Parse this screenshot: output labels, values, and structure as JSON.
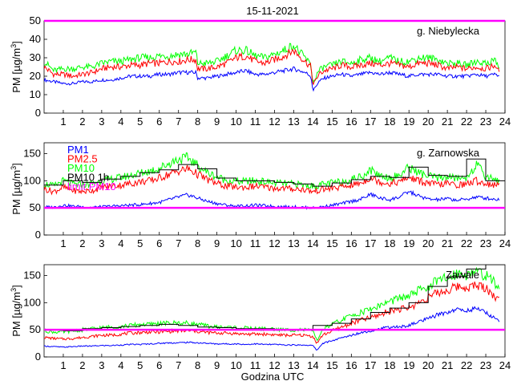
{
  "figure": {
    "title": "15-11-2021",
    "xlabel": "Godzina UTC"
  },
  "legend": {
    "items": [
      {
        "label": "PM1",
        "color": "#0000ff"
      },
      {
        "label": "PM2.5",
        "color": "#ff0000"
      },
      {
        "label": "PM10",
        "color": "#00ff00"
      },
      {
        "label": "PM10 1h",
        "color": "#000000"
      },
      {
        "label": "limit PM10",
        "color": "#ff00ff"
      }
    ]
  },
  "colors": {
    "pm1": "#0000ff",
    "pm25": "#ff0000",
    "pm10": "#00ff00",
    "pm10_1h": "#000000",
    "limit": "#ff00ff"
  },
  "chart_data": [
    {
      "type": "line",
      "station": "g. Niebylecka",
      "ylabel": "PM [µg/m³]",
      "ylabel_parts": {
        "prefix": "PM [µg/m",
        "sup": "3",
        "suffix": "]"
      },
      "xlim": [
        0,
        24
      ],
      "ylim": [
        0,
        50
      ],
      "yticks": [
        0,
        10,
        20,
        30,
        40,
        50
      ],
      "xticks": [
        1,
        2,
        3,
        4,
        5,
        6,
        7,
        8,
        9,
        10,
        11,
        12,
        13,
        14,
        15,
        16,
        17,
        18,
        19,
        20,
        21,
        22,
        23,
        24
      ],
      "limit": 50,
      "x": [
        0.0,
        0.5,
        1.0,
        1.5,
        2.0,
        2.5,
        3.0,
        3.5,
        4.0,
        4.5,
        5.0,
        5.5,
        6.0,
        6.5,
        7.0,
        7.5,
        7.9,
        8.0,
        8.5,
        9.0,
        9.5,
        10.0,
        10.5,
        11.0,
        11.5,
        12.0,
        12.5,
        13.0,
        13.3,
        13.6,
        13.9,
        14.0,
        14.3,
        14.6,
        15.0,
        15.5,
        16.0,
        16.5,
        17.0,
        17.5,
        18.0,
        18.5,
        19.0,
        19.5,
        20.0,
        20.5,
        21.0,
        21.5,
        22.0,
        22.5,
        23.0,
        23.5,
        23.7
      ],
      "series": [
        {
          "name": "PM1",
          "values": [
            18,
            17,
            16,
            16,
            17,
            17,
            18,
            18,
            19,
            20,
            20,
            20,
            21,
            21,
            22,
            22,
            22,
            19,
            19,
            20,
            21,
            22,
            23,
            21,
            21,
            22,
            23,
            24,
            23,
            22,
            20,
            12,
            17,
            19,
            20,
            21,
            20,
            21,
            22,
            21,
            22,
            21,
            20,
            21,
            21,
            21,
            20,
            20,
            20,
            21,
            20,
            21,
            20
          ]
        },
        {
          "name": "PM2.5",
          "values": [
            25,
            21,
            21,
            20,
            21,
            22,
            24,
            25,
            25,
            26,
            26,
            27,
            27,
            28,
            28,
            29,
            29,
            24,
            24,
            25,
            27,
            30,
            31,
            28,
            27,
            29,
            31,
            34,
            31,
            28,
            25,
            15,
            21,
            23,
            24,
            26,
            25,
            26,
            27,
            26,
            27,
            26,
            25,
            27,
            27,
            26,
            24,
            25,
            24,
            25,
            24,
            26,
            22
          ]
        },
        {
          "name": "PM10",
          "values": [
            28,
            23,
            24,
            24,
            25,
            25,
            27,
            28,
            28,
            29,
            30,
            30,
            31,
            31,
            32,
            32,
            33,
            27,
            27,
            28,
            31,
            34,
            34,
            31,
            30,
            32,
            34,
            37,
            33,
            30,
            26,
            16,
            23,
            25,
            26,
            28,
            27,
            29,
            30,
            28,
            30,
            28,
            28,
            30,
            30,
            29,
            27,
            27,
            26,
            28,
            27,
            29,
            24
          ]
        }
      ],
      "step_1h": null
    },
    {
      "type": "line",
      "station": "g. Zarnowska",
      "ylabel": "PM [µg/m³]",
      "ylabel_parts": {
        "prefix": "PM [µg/m",
        "sup": "3",
        "suffix": "]"
      },
      "xlim": [
        0,
        24
      ],
      "ylim": [
        0,
        170
      ],
      "yticks": [
        0,
        50,
        100,
        150
      ],
      "xticks": [
        1,
        2,
        3,
        4,
        5,
        6,
        7,
        8,
        9,
        10,
        11,
        12,
        13,
        14,
        15,
        16,
        17,
        18,
        19,
        20,
        21,
        22,
        23,
        24
      ],
      "limit": 50,
      "x": [
        0.0,
        0.5,
        1.0,
        1.5,
        2.0,
        2.5,
        3.0,
        3.5,
        4.0,
        4.5,
        5.0,
        5.5,
        6.0,
        6.5,
        7.0,
        7.5,
        8.0,
        8.5,
        9.0,
        9.5,
        10.0,
        10.5,
        11.0,
        11.5,
        12.0,
        12.5,
        13.0,
        13.5,
        14.0,
        14.5,
        15.0,
        15.5,
        16.0,
        16.5,
        17.0,
        17.5,
        18.0,
        18.5,
        19.0,
        19.5,
        20.0,
        20.5,
        21.0,
        21.5,
        22.0,
        22.5,
        23.0,
        23.5,
        23.7
      ],
      "series": [
        {
          "name": "PM1",
          "values": [
            52,
            51,
            55,
            53,
            52,
            51,
            52,
            53,
            54,
            55,
            56,
            58,
            60,
            65,
            70,
            74,
            68,
            62,
            58,
            55,
            53,
            54,
            55,
            54,
            53,
            52,
            52,
            51,
            50,
            52,
            55,
            58,
            62,
            66,
            75,
            68,
            65,
            70,
            80,
            72,
            66,
            65,
            67,
            64,
            66,
            70,
            68,
            66,
            65
          ]
        },
        {
          "name": "PM2.5",
          "values": [
            85,
            80,
            88,
            82,
            80,
            82,
            88,
            90,
            92,
            95,
            98,
            100,
            105,
            112,
            118,
            122,
            112,
            102,
            95,
            90,
            88,
            88,
            90,
            88,
            86,
            86,
            85,
            84,
            80,
            84,
            86,
            88,
            92,
            96,
            106,
            98,
            95,
            98,
            106,
            100,
            95,
            93,
            95,
            92,
            94,
            100,
            95,
            92,
            90
          ]
        },
        {
          "name": "PM10",
          "values": [
            95,
            90,
            100,
            94,
            92,
            95,
            100,
            103,
            106,
            110,
            114,
            118,
            123,
            132,
            140,
            142,
            128,
            115,
            107,
            101,
            98,
            99,
            100,
            98,
            96,
            95,
            94,
            92,
            90,
            93,
            96,
            98,
            103,
            108,
            120,
            110,
            106,
            110,
            125,
            115,
            108,
            105,
            108,
            104,
            106,
            130,
            108,
            104,
            100
          ]
        }
      ],
      "step_1h": {
        "hours": [
          0,
          1,
          2,
          3,
          4,
          5,
          6,
          7,
          8,
          9,
          10,
          11,
          12,
          13,
          14,
          15,
          16,
          17,
          18,
          19,
          20,
          21,
          22,
          23
        ],
        "values": [
          92,
          100,
          97,
          103,
          108,
          115,
          120,
          130,
          122,
          105,
          100,
          100,
          97,
          94,
          90,
          96,
          102,
          108,
          106,
          125,
          110,
          108,
          140,
          100
        ]
      }
    },
    {
      "type": "line",
      "station": "Zawale",
      "ylabel": "PM [µg/m³]",
      "ylabel_parts": {
        "prefix": "PM [µg/m",
        "sup": "3",
        "suffix": "]"
      },
      "xlim": [
        0,
        24
      ],
      "ylim": [
        0,
        170
      ],
      "yticks": [
        0,
        50,
        100,
        150
      ],
      "xticks": [
        1,
        2,
        3,
        4,
        5,
        6,
        7,
        8,
        9,
        10,
        11,
        12,
        13,
        14,
        15,
        16,
        17,
        18,
        19,
        20,
        21,
        22,
        23,
        24
      ],
      "limit": 50,
      "x": [
        0.0,
        0.5,
        1.0,
        1.5,
        2.0,
        2.5,
        3.0,
        3.5,
        4.0,
        4.5,
        5.0,
        5.5,
        6.0,
        6.5,
        7.0,
        7.5,
        8.0,
        8.5,
        9.0,
        9.5,
        10.0,
        10.5,
        11.0,
        11.5,
        12.0,
        12.5,
        13.0,
        13.5,
        14.0,
        14.2,
        14.5,
        15.0,
        15.5,
        16.0,
        16.5,
        17.0,
        17.5,
        18.0,
        18.5,
        19.0,
        19.5,
        20.0,
        20.5,
        21.0,
        21.5,
        22.0,
        22.5,
        23.0,
        23.5,
        23.7
      ],
      "series": [
        {
          "name": "PM1",
          "values": [
            20,
            19,
            18,
            19,
            20,
            20,
            21,
            21,
            22,
            23,
            23,
            24,
            25,
            26,
            26,
            27,
            26,
            25,
            24,
            24,
            24,
            23,
            24,
            23,
            23,
            22,
            22,
            22,
            21,
            12,
            25,
            30,
            35,
            40,
            45,
            48,
            52,
            55,
            55,
            58,
            65,
            70,
            78,
            82,
            88,
            85,
            90,
            82,
            70,
            68
          ]
        },
        {
          "name": "PM2.5",
          "values": [
            36,
            34,
            33,
            34,
            36,
            38,
            40,
            40,
            42,
            44,
            45,
            46,
            46,
            47,
            48,
            48,
            47,
            45,
            44,
            44,
            43,
            42,
            42,
            42,
            41,
            40,
            40,
            40,
            38,
            25,
            40,
            48,
            55,
            62,
            68,
            72,
            78,
            85,
            88,
            90,
            100,
            110,
            118,
            122,
            130,
            128,
            132,
            128,
            110,
            105
          ]
        },
        {
          "name": "PM10",
          "values": [
            48,
            46,
            46,
            48,
            50,
            52,
            54,
            55,
            56,
            58,
            60,
            60,
            62,
            62,
            63,
            62,
            60,
            57,
            55,
            55,
            54,
            53,
            52,
            52,
            51,
            50,
            50,
            50,
            48,
            30,
            50,
            60,
            68,
            76,
            82,
            88,
            95,
            102,
            108,
            112,
            122,
            130,
            140,
            145,
            155,
            152,
            158,
            150,
            135,
            130
          ]
        }
      ],
      "step_1h": {
        "hours": [
          0,
          1,
          2,
          3,
          4,
          5,
          6,
          7,
          8,
          9,
          10,
          11,
          12,
          13,
          14,
          15,
          16,
          17,
          18,
          19,
          20,
          21,
          22,
          23
        ],
        "values": [
          50,
          48,
          52,
          54,
          56,
          58,
          60,
          58,
          55,
          54,
          52,
          52,
          51,
          50,
          58,
          62,
          70,
          82,
          90,
          100,
          130,
          148,
          162,
          170
        ]
      }
    }
  ]
}
